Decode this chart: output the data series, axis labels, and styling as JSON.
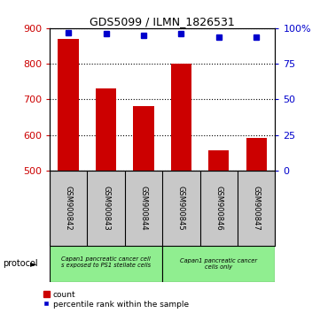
{
  "title": "GDS5099 / ILMN_1826531",
  "samples": [
    "GSM900842",
    "GSM900843",
    "GSM900844",
    "GSM900845",
    "GSM900846",
    "GSM900847"
  ],
  "counts": [
    870,
    730,
    680,
    800,
    558,
    592
  ],
  "percentile_ranks": [
    97,
    96,
    95,
    96,
    94,
    94
  ],
  "ylim_left": [
    500,
    900
  ],
  "ylim_right": [
    0,
    100
  ],
  "yticks_left": [
    500,
    600,
    700,
    800,
    900
  ],
  "yticks_right": [
    0,
    25,
    50,
    75,
    100
  ],
  "bar_color": "#cc0000",
  "marker_color": "#0000cc",
  "grid_color": "#000000",
  "group1_label": "Capan1 pancreatic cancer cell\ns exposed to PS1 stellate cells",
  "group2_label": "Capan1 pancreatic cancer\ncells only",
  "group_color": "#90ee90",
  "sample_bg_color": "#c8c8c8",
  "legend_count_label": "count",
  "legend_percentile_label": "percentile rank within the sample",
  "protocol_label": "protocol",
  "tick_color_left": "#cc0000",
  "tick_color_right": "#0000cc",
  "background_color": "#ffffff"
}
